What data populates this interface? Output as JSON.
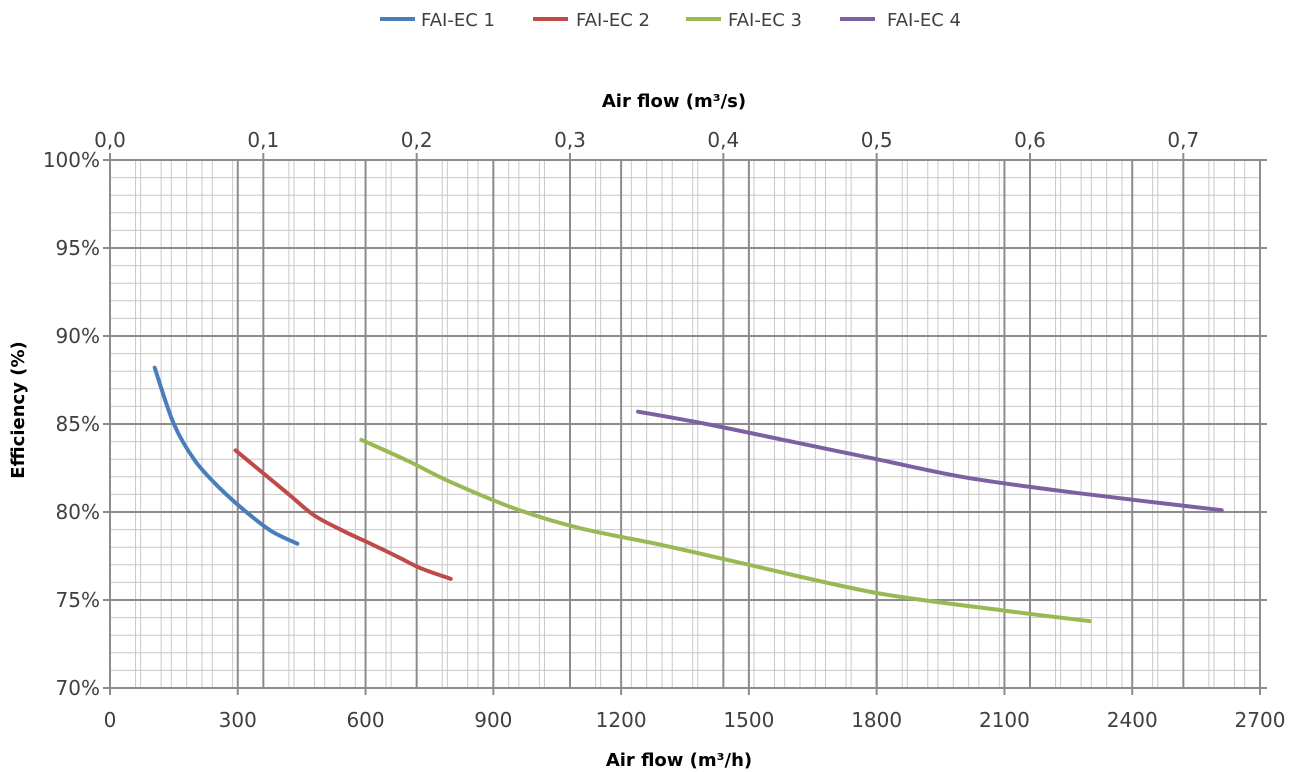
{
  "chart_data": {
    "type": "line",
    "xlabel": "Air flow (m³/h)",
    "x2label": "Air flow (m³/s)",
    "ylabel": "Efficiency (%)",
    "xlim": [
      0,
      2700
    ],
    "x2lim": [
      0,
      0.75
    ],
    "ylim": [
      70,
      100
    ],
    "x_ticks": [
      "0",
      "300",
      "600",
      "900",
      "1200",
      "1500",
      "1800",
      "2100",
      "2400",
      "2700"
    ],
    "x2_ticks": [
      "0,0",
      "0,1",
      "0,2",
      "0,3",
      "0,4",
      "0,5",
      "0,6",
      "0,7"
    ],
    "y_ticks": [
      "70%",
      "75%",
      "80%",
      "85%",
      "90%",
      "95%",
      "100%"
    ],
    "grid": true,
    "legend_position": "top-center",
    "series": [
      {
        "name": "FAI-EC 1",
        "color": "#4a7ebb",
        "x": [
          105,
          150,
          200,
          260,
          320,
          380,
          440
        ],
        "y": [
          88.2,
          85.0,
          82.9,
          81.3,
          80.0,
          78.9,
          78.2
        ]
      },
      {
        "name": "FAI-EC 2",
        "color": "#be4b48",
        "x": [
          295,
          350,
          420,
          480,
          550,
          620,
          680,
          730,
          800
        ],
        "y": [
          83.5,
          82.4,
          81.0,
          79.8,
          78.9,
          78.1,
          77.4,
          76.8,
          76.2
        ]
      },
      {
        "name": "FAI-EC 3",
        "color": "#98b954",
        "x": [
          590,
          700,
          800,
          950,
          1100,
          1300,
          1500,
          1800,
          2100,
          2300
        ],
        "y": [
          84.1,
          82.9,
          81.7,
          80.2,
          79.1,
          78.1,
          77.0,
          75.4,
          74.4,
          73.8
        ]
      },
      {
        "name": "FAI-EC 4",
        "color": "#7d60a0",
        "x": [
          1240,
          1400,
          1600,
          1800,
          2000,
          2200,
          2400,
          2610
        ],
        "y": [
          85.7,
          85.0,
          84.0,
          83.0,
          82.0,
          81.3,
          80.7,
          80.1
        ]
      }
    ]
  }
}
